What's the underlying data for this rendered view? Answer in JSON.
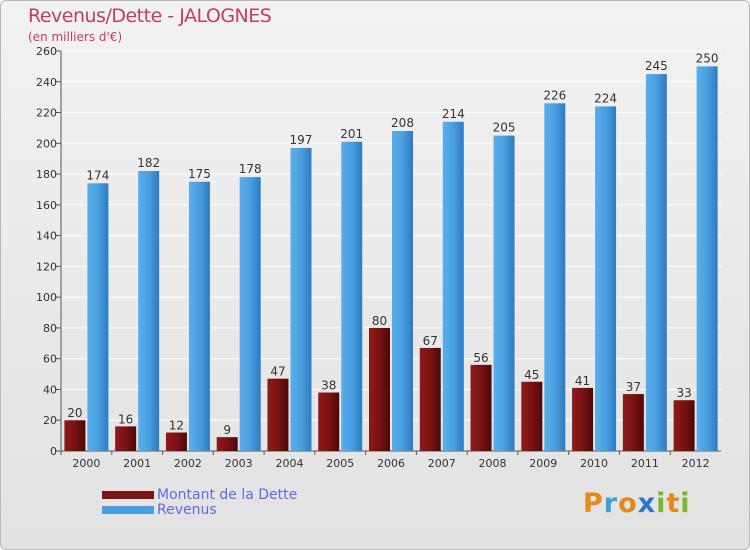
{
  "chart_data": {
    "type": "bar",
    "title": "Revenus/Dette - JALOGNES",
    "subtitle": "(en milliers d'€)",
    "categories": [
      "2000",
      "2001",
      "2002",
      "2003",
      "2004",
      "2005",
      "2006",
      "2007",
      "2008",
      "2009",
      "2010",
      "2011",
      "2012"
    ],
    "series": [
      {
        "name": "Montant de la Dette",
        "color": "#7a1515",
        "values": [
          20,
          16,
          12,
          9,
          47,
          38,
          80,
          67,
          56,
          45,
          41,
          37,
          33
        ]
      },
      {
        "name": "Revenus",
        "color": "#4a9fe0",
        "values": [
          174,
          182,
          175,
          178,
          197,
          201,
          208,
          214,
          205,
          226,
          224,
          245,
          250
        ]
      }
    ],
    "ylim": [
      0,
      260
    ],
    "yticks": [
      0,
      20,
      40,
      60,
      80,
      100,
      120,
      140,
      160,
      180,
      200,
      220,
      240,
      260
    ],
    "grid": true,
    "legend": "bottom-left"
  }
}
